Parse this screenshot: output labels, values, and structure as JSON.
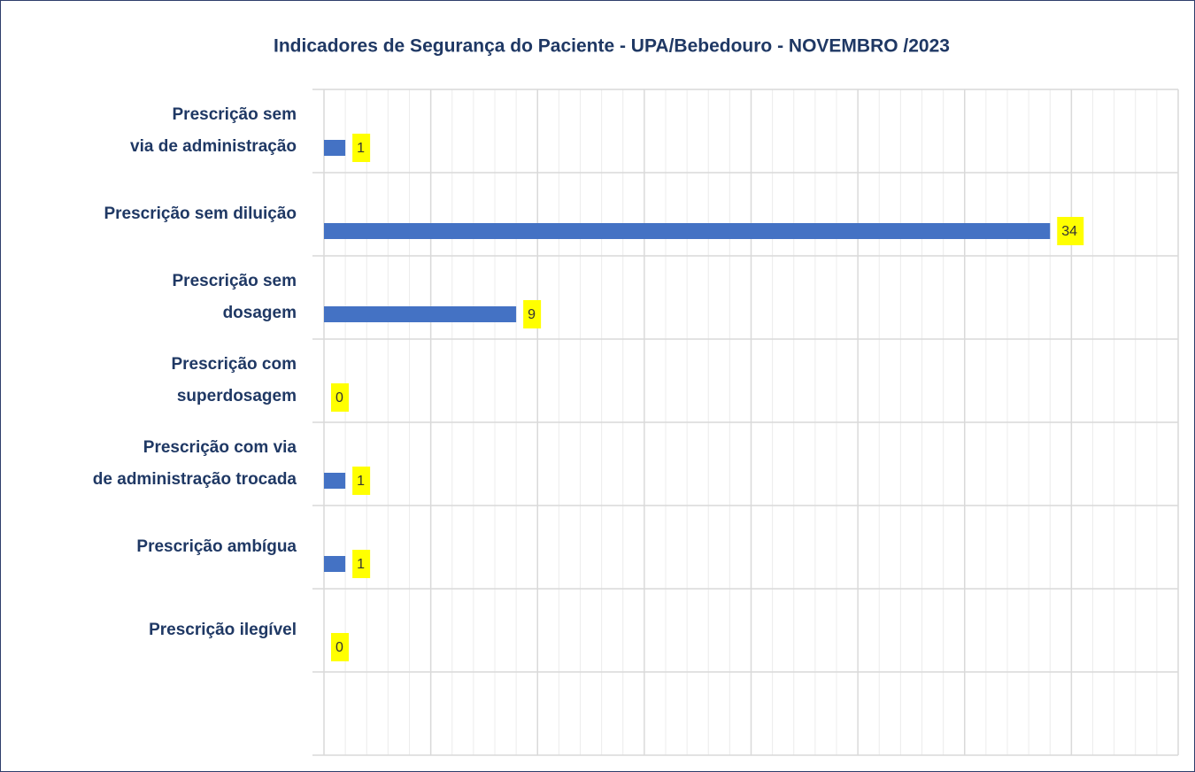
{
  "chart_data": {
    "type": "hbar",
    "title": "Indicadores de Segurança do Paciente - UPA/Bebedouro - NOVEMBRO /2023",
    "categories": [
      "Prescrição sem\nvia de administração",
      "Prescrição sem diluição",
      "Prescrição sem\ndosagem",
      "Prescrição com\nsuperdosagem",
      "Prescrição com via\nde administração trocada",
      "Prescrição ambígua",
      "Prescrição ilegível",
      null
    ],
    "values": [
      1,
      34,
      9,
      0,
      1,
      1,
      0,
      null
    ],
    "color": "#4472c4",
    "label_background": "#ffff00",
    "xlim": [
      0,
      40
    ],
    "xticks": [
      0,
      5,
      10,
      15,
      20,
      25,
      30,
      35,
      40
    ],
    "xminorticks": [
      1,
      2,
      3,
      4,
      6,
      7,
      8,
      9,
      11,
      12,
      13,
      14,
      16,
      17,
      18,
      19,
      21,
      22,
      23,
      24,
      26,
      27,
      28,
      29,
      31,
      32,
      33,
      34,
      36,
      37,
      38,
      39
    ],
    "grid": true
  }
}
